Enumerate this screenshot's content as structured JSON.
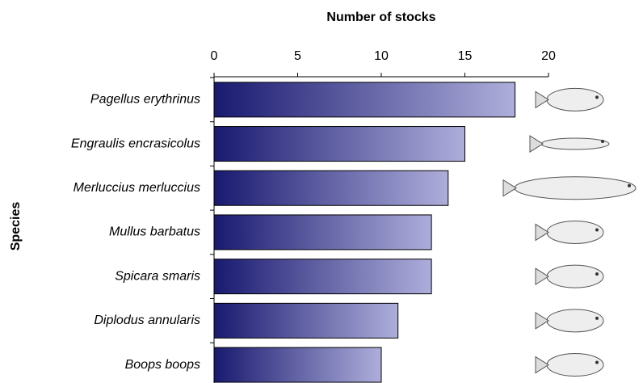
{
  "chart_data": {
    "type": "bar",
    "orientation": "horizontal",
    "x_label": "Number of stocks",
    "y_label": "Species",
    "categories": [
      "Pagellus erythrinus",
      "Engraulis encrasicolus",
      "Merluccius merluccius",
      "Mullus barbatus",
      "Spicara smaris",
      "Diplodus annularis",
      "Boops boops"
    ],
    "values": [
      18,
      15,
      14,
      13,
      13,
      11,
      10
    ],
    "color": [
      "#191970",
      "#aeaedb"
    ],
    "xlim": [
      0,
      20
    ],
    "xticks": [
      0,
      5,
      10,
      15,
      20
    ]
  }
}
